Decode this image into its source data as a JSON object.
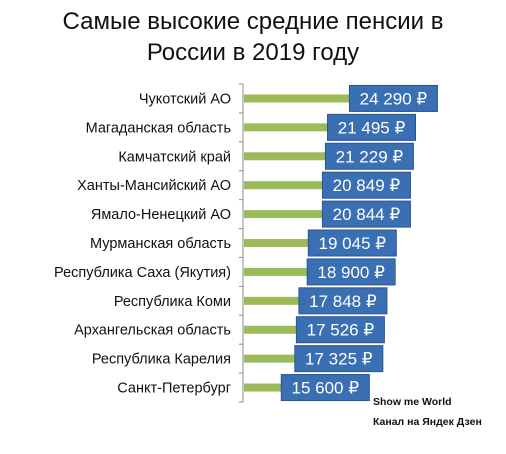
{
  "header": {
    "title_line1": "Самые высокие средние пенсии в",
    "title_line2": "России в 2019 году"
  },
  "footer": {
    "line1": "Show me World",
    "line2": "Канал на Яндек Дзен"
  },
  "colors": {
    "bar": "#9bbb59",
    "label_box": "#3a6fb3",
    "label_box_border": "#2a5590",
    "label_text": "#ffffff",
    "axis": "#8c8c8c"
  },
  "chart_data": {
    "type": "bar",
    "orientation": "horizontal",
    "title": "Самые высокие средние пенсии в России в 2019 году",
    "categories": [
      "Чукотский АО",
      "Магаданская область",
      "Камчатский край",
      "Ханты-Мансийский АО",
      "Ямало-Ненецкий АО",
      "Мурманская область",
      "Республика Саха (Якутия)",
      "Республика Коми",
      "Архангельская область",
      "Республика Карелия",
      "Санкт-Петербург"
    ],
    "values": [
      24290,
      21495,
      21229,
      20849,
      20844,
      19045,
      18900,
      17848,
      17526,
      17325,
      15600
    ],
    "data_labels": [
      "24 290 ₽",
      "21 495 ₽",
      "21 229 ₽",
      "20 849 ₽",
      "20 844 ₽",
      "19 045 ₽",
      "18 900 ₽",
      "17 848 ₽",
      "17 526 ₽",
      "17 325 ₽",
      "15 600 ₽"
    ],
    "xlim": [
      0,
      25000
    ],
    "grid": false,
    "legend": "none"
  }
}
